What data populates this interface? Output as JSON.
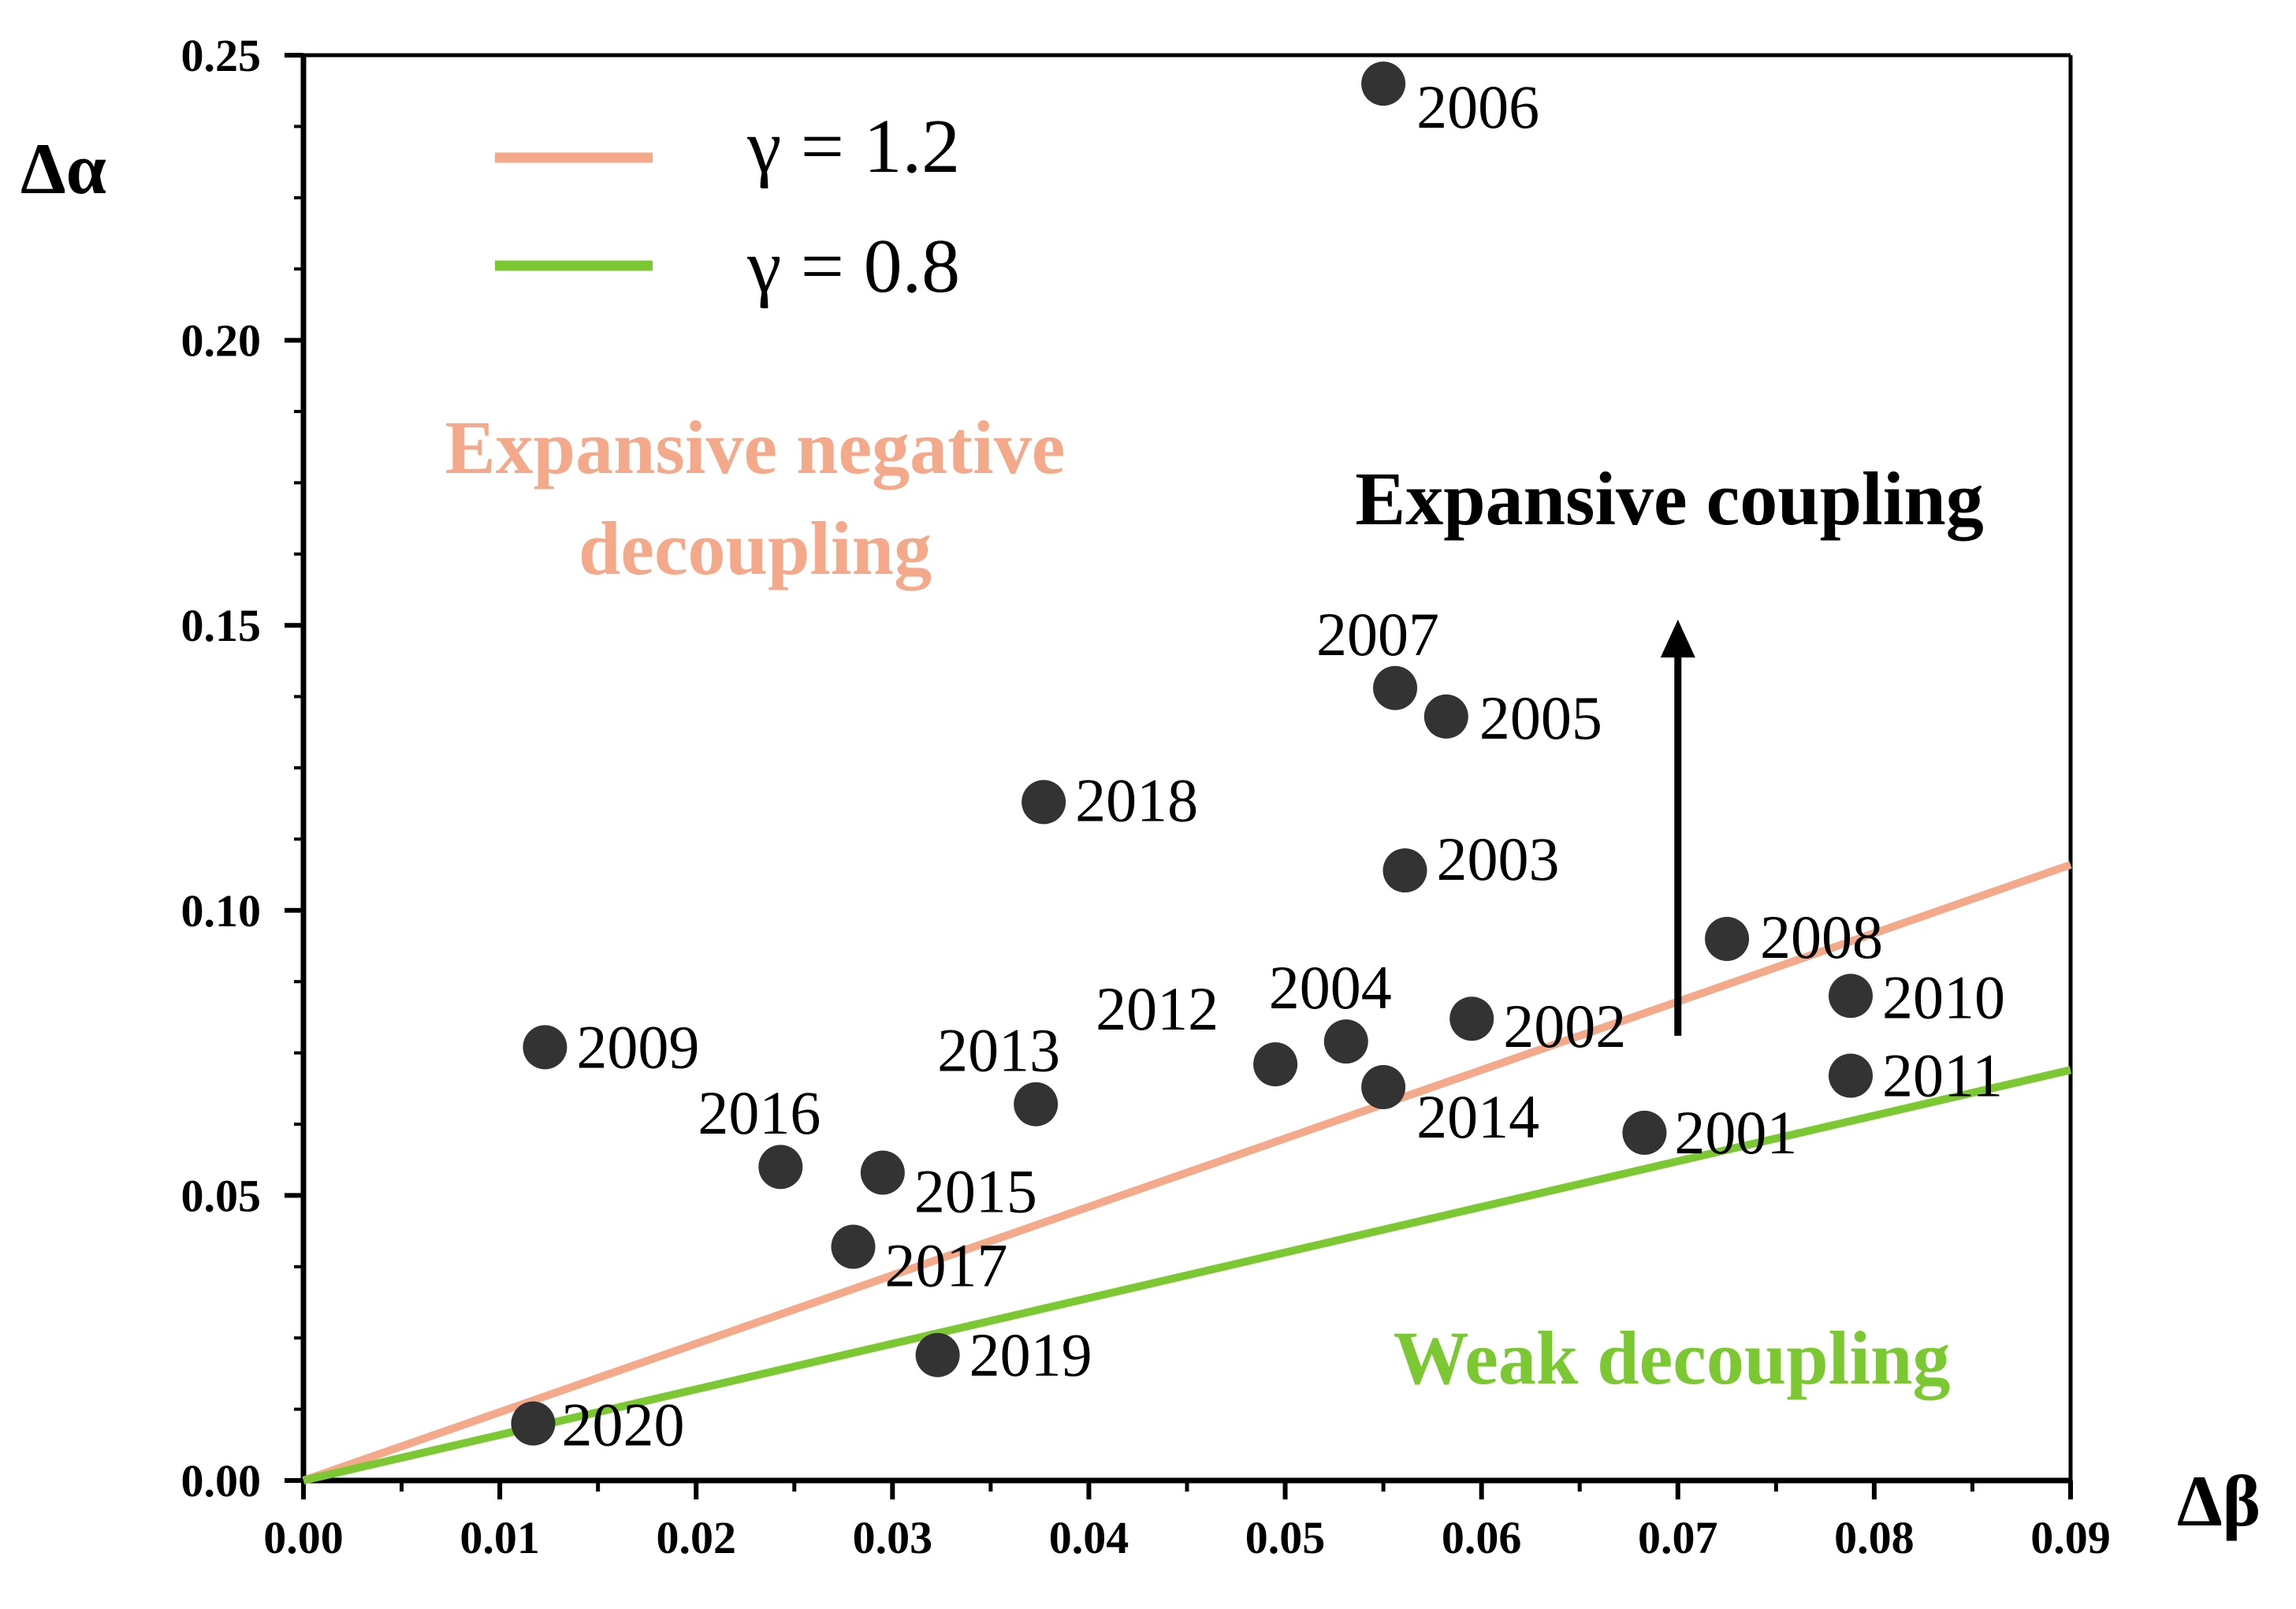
{
  "chart_data": {
    "type": "scatter",
    "title": "",
    "xlabel": "Δβ",
    "ylabel": "Δα",
    "xlim": [
      0,
      0.09
    ],
    "ylim": [
      0,
      0.25
    ],
    "grid": false,
    "x_ticks": [
      "0.00",
      "0.01",
      "0.02",
      "0.03",
      "0.04",
      "0.05",
      "0.06",
      "0.07",
      "0.08",
      "0.09"
    ],
    "y_ticks": [
      "0.00",
      "0.05",
      "0.10",
      "0.15",
      "0.20",
      "0.25"
    ],
    "legend": {
      "position": "top-left",
      "entries": [
        {
          "label": "γ = 1.2",
          "gamma": 1.2,
          "color": "#f4a98a"
        },
        {
          "label": "γ = 0.8",
          "gamma": 0.8,
          "color": "#7cc832"
        }
      ]
    },
    "points": [
      {
        "year": "2001",
        "x": 0.0683,
        "y": 0.061
      },
      {
        "year": "2002",
        "x": 0.0595,
        "y": 0.081
      },
      {
        "year": "2003",
        "x": 0.0561,
        "y": 0.107
      },
      {
        "year": "2004",
        "x": 0.0531,
        "y": 0.077
      },
      {
        "year": "2005",
        "x": 0.0582,
        "y": 0.134
      },
      {
        "year": "2006",
        "x": 0.055,
        "y": 0.245
      },
      {
        "year": "2007",
        "x": 0.0556,
        "y": 0.139
      },
      {
        "year": "2008",
        "x": 0.0725,
        "y": 0.095
      },
      {
        "year": "2009",
        "x": 0.0123,
        "y": 0.076
      },
      {
        "year": "2010",
        "x": 0.0788,
        "y": 0.085
      },
      {
        "year": "2011",
        "x": 0.0788,
        "y": 0.071
      },
      {
        "year": "2012",
        "x": 0.0495,
        "y": 0.073
      },
      {
        "year": "2013",
        "x": 0.0373,
        "y": 0.066
      },
      {
        "year": "2014",
        "x": 0.055,
        "y": 0.069
      },
      {
        "year": "2015",
        "x": 0.0295,
        "y": 0.054
      },
      {
        "year": "2016",
        "x": 0.0243,
        "y": 0.055
      },
      {
        "year": "2017",
        "x": 0.028,
        "y": 0.041
      },
      {
        "year": "2018",
        "x": 0.0377,
        "y": 0.119
      },
      {
        "year": "2019",
        "x": 0.0323,
        "y": 0.022
      },
      {
        "year": "2020",
        "x": 0.0117,
        "y": 0.01
      }
    ],
    "annotations": [
      {
        "text": "Expansive negative",
        "color": "#f4a98a"
      },
      {
        "text": "decoupling",
        "color": "#f4a98a"
      },
      {
        "text": "Expansive coupling",
        "color": "#000000"
      },
      {
        "text": "Weak decoupling",
        "color": "#7cc832"
      }
    ],
    "arrow": {
      "x": 0.07,
      "y_from": 0.078,
      "y_to": 0.151,
      "color": "#000000"
    },
    "point_color": "#333333"
  }
}
